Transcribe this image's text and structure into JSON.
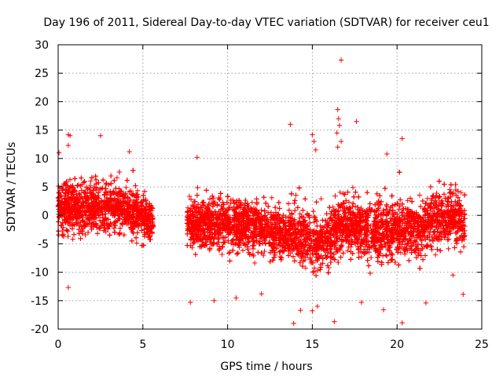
{
  "chart_data": {
    "type": "scatter",
    "title": "Day 196 of 2011, Sidereal Day-to-day VTEC variation (SDTVAR) for receiver ceu1",
    "xlabel": "GPS time / hours",
    "ylabel": "SDTVAR / TECUs",
    "xlim": [
      0,
      25
    ],
    "ylim": [
      -20,
      30
    ],
    "xticks": [
      "0",
      "5",
      "10",
      "15",
      "20",
      "25"
    ],
    "yticks": [
      "-20",
      "-15",
      "-10",
      "-5",
      "0",
      "5",
      "10",
      "15",
      "20",
      "25",
      "30"
    ],
    "grid": true,
    "marker": "+",
    "color": "#ff0000",
    "gaps": [
      [
        5.6,
        7.6
      ]
    ],
    "point_count": 9000,
    "series": [
      {
        "name": "SDTVAR",
        "envelope": [
          {
            "x": 0.0,
            "center": 1.5,
            "spread": 3.5
          },
          {
            "x": 1.0,
            "center": 1.0,
            "spread": 3.5
          },
          {
            "x": 2.0,
            "center": 1.5,
            "spread": 4.0
          },
          {
            "x": 3.0,
            "center": 1.5,
            "spread": 4.0
          },
          {
            "x": 4.0,
            "center": 1.0,
            "spread": 3.5
          },
          {
            "x": 5.0,
            "center": 0.0,
            "spread": 3.0
          },
          {
            "x": 5.6,
            "center": -1.0,
            "spread": 2.5
          },
          {
            "x": 7.6,
            "center": -1.5,
            "spread": 3.0
          },
          {
            "x": 9.0,
            "center": -1.5,
            "spread": 3.5
          },
          {
            "x": 11.0,
            "center": -1.5,
            "spread": 3.5
          },
          {
            "x": 13.0,
            "center": -3.0,
            "spread": 3.5
          },
          {
            "x": 14.5,
            "center": -4.0,
            "spread": 4.0
          },
          {
            "x": 15.5,
            "center": -4.5,
            "spread": 3.5
          },
          {
            "x": 16.2,
            "center": -3.0,
            "spread": 3.5
          },
          {
            "x": 17.0,
            "center": -1.5,
            "spread": 3.5
          },
          {
            "x": 18.0,
            "center": -2.5,
            "spread": 4.0
          },
          {
            "x": 19.5,
            "center": -3.0,
            "spread": 4.5
          },
          {
            "x": 21.0,
            "center": -2.0,
            "spread": 4.0
          },
          {
            "x": 22.5,
            "center": -0.5,
            "spread": 4.0
          },
          {
            "x": 24.0,
            "center": -1.0,
            "spread": 3.5
          }
        ],
        "outliers": [
          {
            "x": 0.05,
            "y": 11.0
          },
          {
            "x": 0.6,
            "y": 14.2
          },
          {
            "x": 0.7,
            "y": 14.0
          },
          {
            "x": 0.6,
            "y": 12.3
          },
          {
            "x": 2.5,
            "y": 14.0
          },
          {
            "x": 4.2,
            "y": 11.2
          },
          {
            "x": 0.6,
            "y": -12.7
          },
          {
            "x": 7.8,
            "y": -15.3
          },
          {
            "x": 8.2,
            "y": 10.2
          },
          {
            "x": 9.2,
            "y": -15.0
          },
          {
            "x": 10.5,
            "y": -14.5
          },
          {
            "x": 13.7,
            "y": 16.0
          },
          {
            "x": 13.9,
            "y": -19.0
          },
          {
            "x": 14.3,
            "y": -16.7
          },
          {
            "x": 15.0,
            "y": -16.8
          },
          {
            "x": 15.3,
            "y": -16.0
          },
          {
            "x": 15.0,
            "y": 14.2
          },
          {
            "x": 15.1,
            "y": 13.0
          },
          {
            "x": 15.2,
            "y": 11.5
          },
          {
            "x": 16.3,
            "y": -18.7
          },
          {
            "x": 16.5,
            "y": 18.6
          },
          {
            "x": 16.55,
            "y": 17.0
          },
          {
            "x": 16.6,
            "y": 15.8
          },
          {
            "x": 16.45,
            "y": 14.5
          },
          {
            "x": 16.7,
            "y": 13.0
          },
          {
            "x": 16.5,
            "y": 12.0
          },
          {
            "x": 16.7,
            "y": 27.3
          },
          {
            "x": 17.6,
            "y": 16.5
          },
          {
            "x": 19.2,
            "y": -16.6
          },
          {
            "x": 19.4,
            "y": 10.8
          },
          {
            "x": 20.3,
            "y": -18.9
          },
          {
            "x": 20.3,
            "y": 13.5
          },
          {
            "x": 21.7,
            "y": -15.4
          },
          {
            "x": 23.9,
            "y": -13.9
          },
          {
            "x": 23.3,
            "y": -10.5
          },
          {
            "x": 17.9,
            "y": -15.3
          },
          {
            "x": 12.0,
            "y": -13.8
          }
        ]
      }
    ]
  }
}
